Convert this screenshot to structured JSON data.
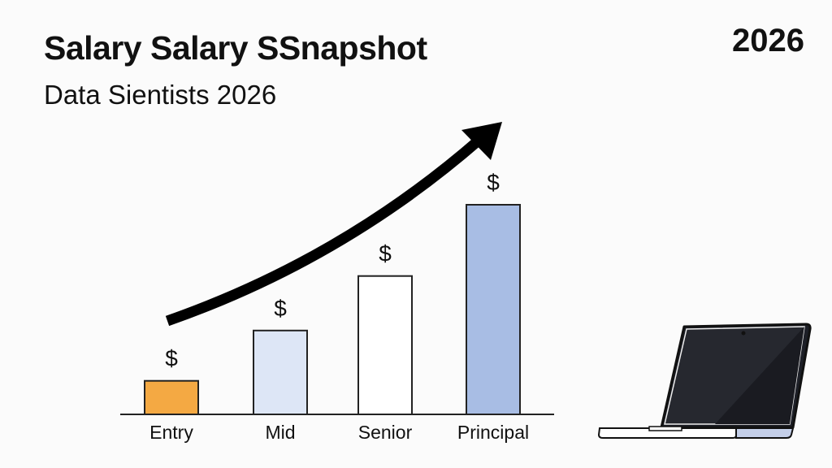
{
  "header": {
    "title": "Salary Salary SSnapshot",
    "subtitle": "Data Sientists 2026",
    "year": "2026"
  },
  "chart_data": {
    "type": "bar",
    "title": "Salary Salary SSnapshot",
    "subtitle": "Data Sientists 2026",
    "categories": [
      "Entry",
      "Mid",
      "Senior",
      "Principal"
    ],
    "values": [
      16,
      40,
      66,
      100
    ],
    "value_note": "relative heights, no axis shown",
    "bar_labels": [
      "$",
      "$",
      "$",
      "$"
    ],
    "colors": [
      "#f4a943",
      "#dde6f6",
      "#ffffff",
      "#a8bde4"
    ],
    "ylim": [
      0,
      100
    ],
    "xlabel": "",
    "ylabel": "",
    "grid": false,
    "annotations": [
      "upward trend arrow"
    ]
  }
}
